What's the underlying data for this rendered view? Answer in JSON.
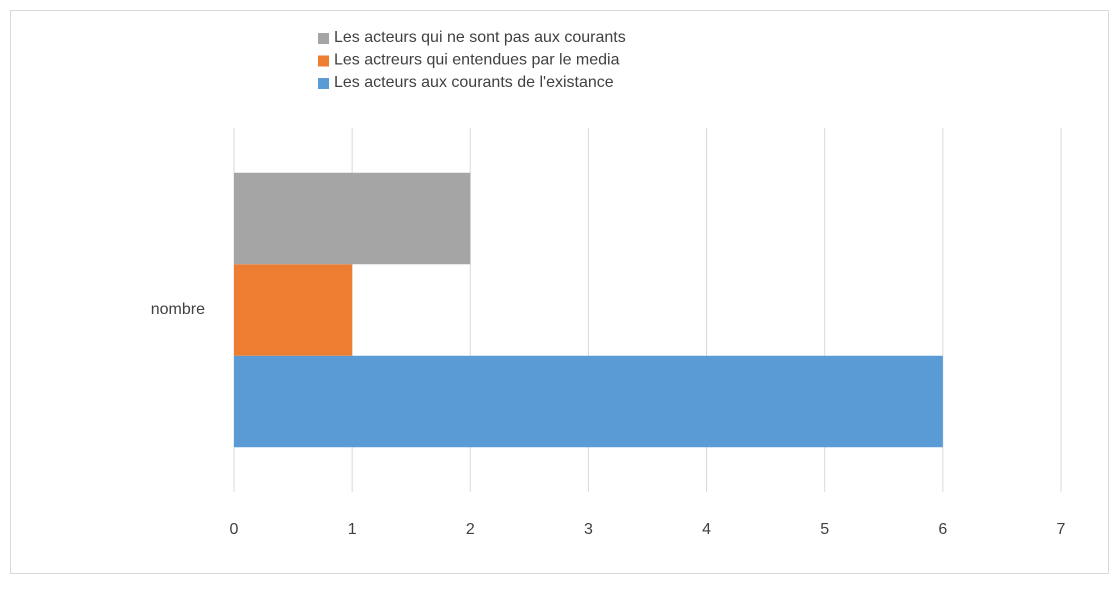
{
  "chart_data": {
    "type": "bar",
    "orientation": "horizontal",
    "categories": [
      "nombre"
    ],
    "series": [
      {
        "name": "Les acteurs aux courants de l'existance",
        "color": "#5b9bd5",
        "values": [
          6
        ]
      },
      {
        "name": "Les actreurs qui entendues par le media",
        "color": "#ed7d31",
        "values": [
          1
        ]
      },
      {
        "name": "Les acteurs qui ne sont pas aux courants",
        "color": "#a5a5a5",
        "values": [
          2
        ]
      }
    ],
    "xlim": [
      0,
      7
    ],
    "xticks": [
      0,
      1,
      2,
      3,
      4,
      5,
      6,
      7
    ],
    "grid": true,
    "legend": "top"
  }
}
